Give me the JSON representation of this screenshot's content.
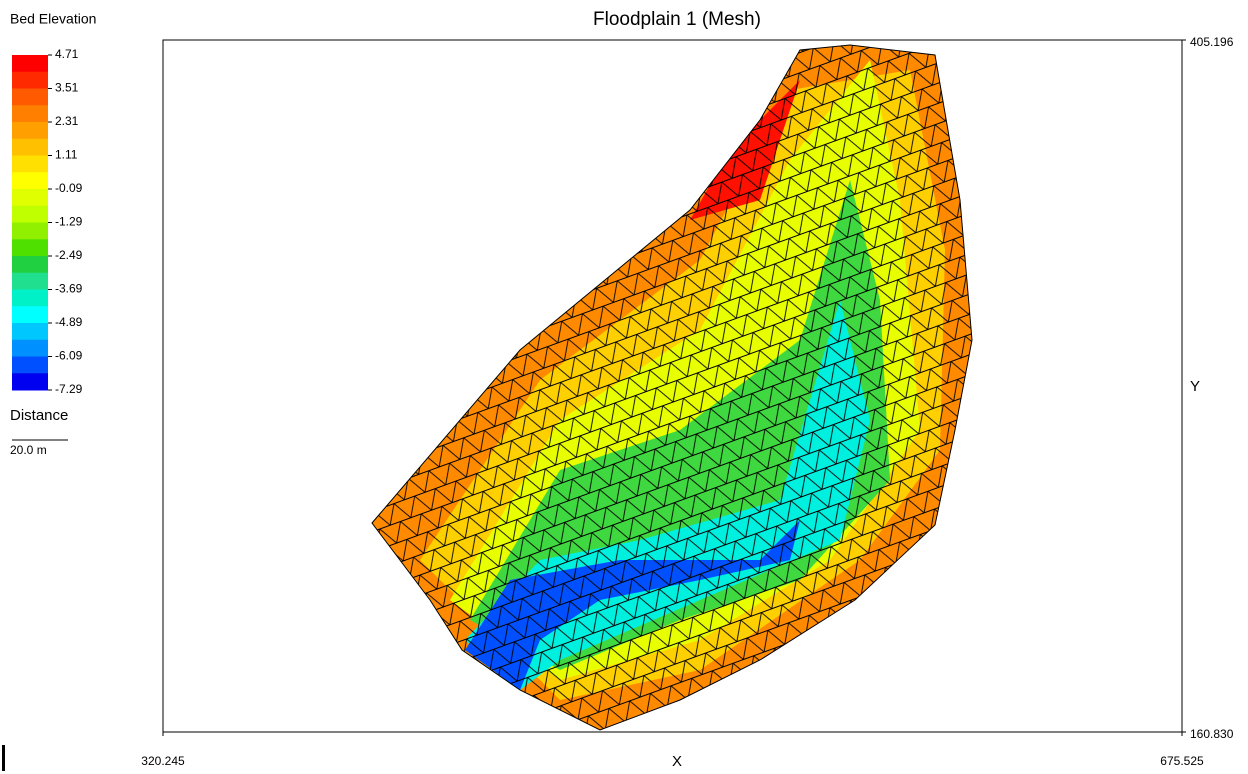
{
  "chart_data": {
    "type": "mesh",
    "title": "Floodplain 1 (Mesh)",
    "xlabel": "X",
    "ylabel": "Y",
    "xlim": [
      320.245,
      675.525
    ],
    "xticks": [
      320.245,
      675.525
    ],
    "ylim": [
      160.83,
      405.196
    ],
    "yticks": [
      {
        "value": 160.83,
        "label": "160.830"
      },
      405.196
    ],
    "colorbar": {
      "title": "Bed Elevation",
      "ticks": [
        4.71,
        3.51,
        2.31,
        1.11,
        -0.09,
        -1.29,
        -2.49,
        -3.69,
        -4.89,
        -6.09,
        -7.29
      ],
      "colors": [
        "#ff0000",
        "#ff2a00",
        "#ff5a00",
        "#ff8000",
        "#ffa000",
        "#ffc000",
        "#ffe000",
        "#ffff00",
        "#e0ff00",
        "#c0ff00",
        "#90f000",
        "#50e000",
        "#20d040",
        "#20e090",
        "#00f0c8",
        "#00ffff",
        "#00c8ff",
        "#0090ff",
        "#0050ff",
        "#0000f0"
      ]
    },
    "scale_title": "Distance",
    "scale_label": "20.0 m"
  }
}
